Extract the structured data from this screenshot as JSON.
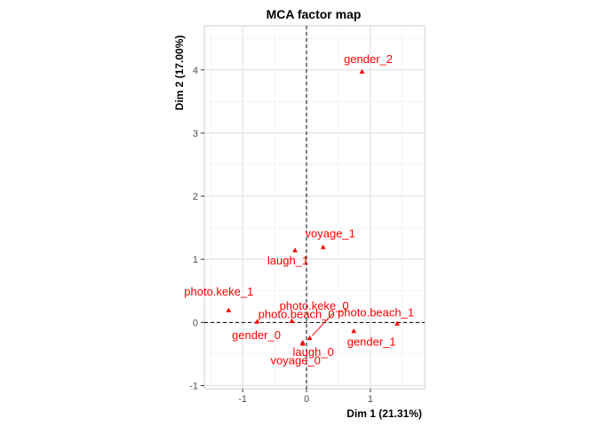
{
  "chart_data": {
    "type": "scatter",
    "title": "MCA factor map",
    "xlabel": "Dim 1 (21.31%)",
    "ylabel": "Dim 2 (17.00%)",
    "xlim": [
      -1.6,
      1.85
    ],
    "ylim": [
      -1.05,
      4.7
    ],
    "x_ticks": [
      -1,
      0,
      1
    ],
    "y_ticks": [
      -1,
      0,
      1,
      2,
      3,
      4
    ],
    "grid": true,
    "color": "#ff0000",
    "points": [
      {
        "label": "gender_2",
        "x": 0.87,
        "y": 3.97
      },
      {
        "label": "voyage_1",
        "x": 0.26,
        "y": 1.19
      },
      {
        "label": "laugh_1",
        "x": -0.18,
        "y": 1.14
      },
      {
        "label": "photo.keke_1",
        "x": -1.22,
        "y": 0.19
      },
      {
        "label": "photo.keke_0",
        "x": 0.05,
        "y": -0.25
      },
      {
        "label": "photo.beach_0",
        "x": -0.77,
        "y": 0.01
      },
      {
        "label": "photo.beach_1",
        "x": 1.42,
        "y": -0.02
      },
      {
        "label": "gender_0",
        "x": -0.23,
        "y": 0.02
      },
      {
        "label": "laugh_0",
        "x": -0.06,
        "y": -0.32
      },
      {
        "label": "gender_1",
        "x": 0.74,
        "y": -0.14
      },
      {
        "label": "voyage_0",
        "x": -0.06,
        "y": -0.34
      }
    ]
  }
}
